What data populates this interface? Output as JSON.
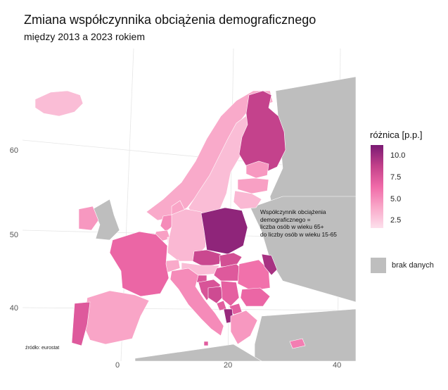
{
  "title": "Zmiana współczynnika obciążenia demograficznego",
  "subtitle": "między 2013 a 2023 rokiem",
  "axes": {
    "x_ticks": [
      "0",
      "20",
      "40"
    ],
    "y_ticks": [
      "60",
      "50",
      "40"
    ]
  },
  "source": "źródło: eurostat",
  "annotation": {
    "lines": [
      "Współczynnik obciążenia",
      "demograficznego =",
      "liczba osób w wieku 65+",
      "do liczby osób w wieku 15-65"
    ]
  },
  "legend": {
    "title": "różnica [p.p.]",
    "ticks": [
      "10.0",
      "7.5",
      "5.0",
      "2.5"
    ],
    "no_data_label": "brak danych",
    "colors": {
      "low": "#fde0ec",
      "mid_low": "#f9a8c9",
      "mid": "#f06aa8",
      "mid_high": "#c2408a",
      "high": "#7a1a73",
      "no_data": "#bebebe"
    }
  },
  "chart_data": {
    "type": "choropleth",
    "value_name": "różnica [p.p.]",
    "range": [
      1.5,
      11.0
    ],
    "regions": [
      {
        "name": "Iceland",
        "value": 3.0
      },
      {
        "name": "Norway",
        "value": 3.8
      },
      {
        "name": "Sweden",
        "value": 3.0
      },
      {
        "name": "Finland",
        "value": 8.5
      },
      {
        "name": "Estonia",
        "value": 4.5
      },
      {
        "name": "Latvia",
        "value": 4.2
      },
      {
        "name": "Lithuania",
        "value": 3.2
      },
      {
        "name": "Denmark",
        "value": 4.0
      },
      {
        "name": "Ireland",
        "value": 4.5
      },
      {
        "name": "Netherlands",
        "value": 5.0
      },
      {
        "name": "Belgium",
        "value": 4.2
      },
      {
        "name": "Luxembourg",
        "value": 1.8
      },
      {
        "name": "Germany",
        "value": 3.2
      },
      {
        "name": "Poland",
        "value": 10.3
      },
      {
        "name": "Czechia",
        "value": 8.2
      },
      {
        "name": "Slovakia",
        "value": 7.8
      },
      {
        "name": "Austria",
        "value": 3.0
      },
      {
        "name": "Hungary",
        "value": 7.2
      },
      {
        "name": "Romania",
        "value": 6.0
      },
      {
        "name": "Moldova",
        "value": 9.5
      },
      {
        "name": "Bulgaria",
        "value": 6.5
      },
      {
        "name": "Slovenia",
        "value": 7.4
      },
      {
        "name": "Croatia",
        "value": 7.5
      },
      {
        "name": "Bosnia and Herzegovina",
        "value": 8.0
      },
      {
        "name": "Serbia",
        "value": 6.8
      },
      {
        "name": "Montenegro",
        "value": 7.0
      },
      {
        "name": "North Macedonia",
        "value": 6.9
      },
      {
        "name": "Albania",
        "value": 10.0
      },
      {
        "name": "Greece",
        "value": 4.5
      },
      {
        "name": "Italy",
        "value": 5.0
      },
      {
        "name": "Switzerland",
        "value": 3.8
      },
      {
        "name": "France",
        "value": 6.5
      },
      {
        "name": "Spain",
        "value": 4.0
      },
      {
        "name": "Portugal",
        "value": 7.2
      },
      {
        "name": "Malta",
        "value": 7.0
      },
      {
        "name": "Cyprus",
        "value": 5.5
      }
    ]
  }
}
